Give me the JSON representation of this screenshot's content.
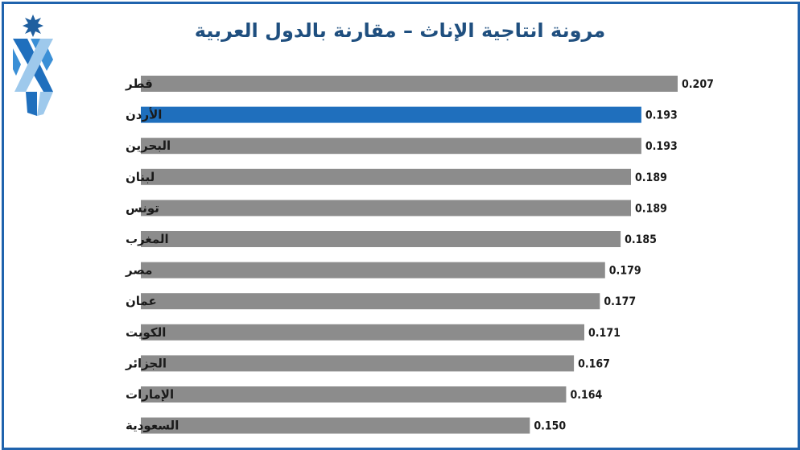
{
  "chart_data": {
    "type": "bar",
    "orientation": "horizontal",
    "title": "مرونة انتاجية الإناث – مقارنة بالدول العربية",
    "categories": [
      "قطر",
      "الأردن",
      "البحرين",
      "لبنان",
      "تونس",
      "المغرب",
      "مصر",
      "عمان",
      "الكويت",
      "الجزائر",
      "الإمارات",
      "السعودية"
    ],
    "values": [
      0.207,
      0.193,
      0.193,
      0.189,
      0.189,
      0.185,
      0.179,
      0.177,
      0.171,
      0.167,
      0.164,
      0.15
    ],
    "value_labels": [
      "0.207",
      "0.193",
      "0.193",
      "0.189",
      "0.189",
      "0.185",
      "0.179",
      "0.177",
      "0.171",
      "0.167",
      "0.164",
      "0.150"
    ],
    "highlight_category": "الأردن",
    "colors": {
      "bar": "#8c8c8c",
      "highlight": "#1f6fbd",
      "title": "#1f4f7f",
      "frame": "#1f63ad"
    },
    "xlim": [
      0,
      0.207
    ],
    "grid": false,
    "legend": "none"
  },
  "branding": {
    "logo_icon": "jordan-star-stripes-logo"
  }
}
